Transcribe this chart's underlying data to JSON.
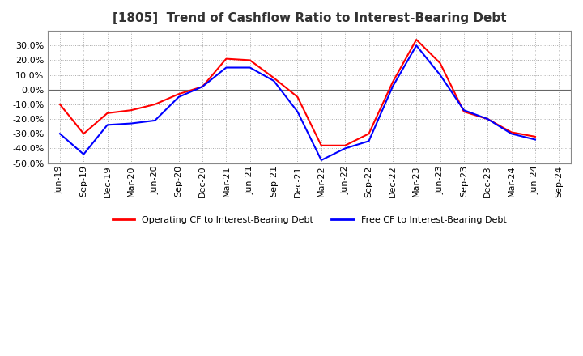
{
  "title": "[1805]  Trend of Cashflow Ratio to Interest-Bearing Debt",
  "x_labels": [
    "Jun-19",
    "Sep-19",
    "Dec-19",
    "Mar-20",
    "Jun-20",
    "Sep-20",
    "Dec-20",
    "Mar-21",
    "Jun-21",
    "Sep-21",
    "Dec-21",
    "Mar-22",
    "Jun-22",
    "Sep-22",
    "Dec-22",
    "Mar-23",
    "Jun-23",
    "Sep-23",
    "Dec-23",
    "Mar-24",
    "Jun-24",
    "Sep-24"
  ],
  "operating_cf": [
    -10.0,
    -30.0,
    -16.0,
    -14.0,
    -10.0,
    -3.0,
    2.0,
    21.0,
    20.0,
    8.0,
    -5.0,
    -38.0,
    -38.0,
    -30.0,
    5.0,
    34.0,
    18.0,
    -15.0,
    -20.0,
    -29.0,
    -32.0,
    null
  ],
  "free_cf": [
    -30.0,
    -44.0,
    -24.0,
    -23.0,
    -21.0,
    -5.0,
    2.0,
    15.0,
    15.0,
    6.0,
    -15.0,
    -48.0,
    -40.0,
    -35.0,
    2.0,
    30.0,
    10.0,
    -14.0,
    -20.0,
    -30.0,
    -34.0,
    null
  ],
  "operating_color": "#ff0000",
  "free_color": "#0000ff",
  "ylim": [
    -50.0,
    40.0
  ],
  "yticks": [
    -50.0,
    -40.0,
    -30.0,
    -20.0,
    -10.0,
    0.0,
    10.0,
    20.0,
    30.0
  ],
  "legend_op": "Operating CF to Interest-Bearing Debt",
  "legend_free": "Free CF to Interest-Bearing Debt",
  "background_color": "#ffffff",
  "plot_bg_color": "#ffffff",
  "grid_color": "#aaaaaa",
  "title_fontsize": 11,
  "tick_fontsize": 8
}
